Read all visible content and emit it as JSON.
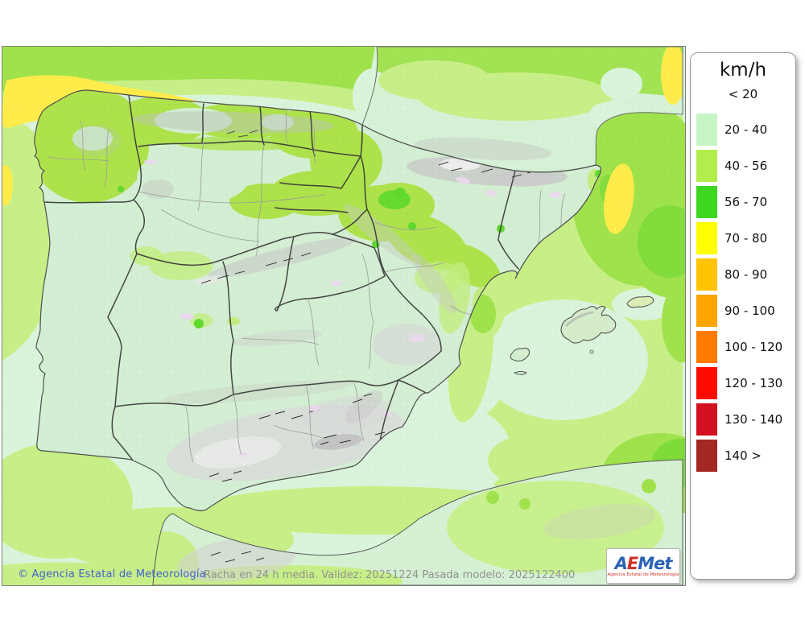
{
  "legend": {
    "unit": "km/h",
    "no_color_label": "< 20",
    "items": [
      {
        "label": "20 - 40",
        "color": "#c5f5c5"
      },
      {
        "label": "40 - 56",
        "color": "#b2ee4b"
      },
      {
        "label": "56 - 70",
        "color": "#3ed621"
      },
      {
        "label": "70 - 80",
        "color": "#ffff00"
      },
      {
        "label": "80 - 90",
        "color": "#ffc300"
      },
      {
        "label": "90 - 100",
        "color": "#ffa400"
      },
      {
        "label": "100 - 120",
        "color": "#ff7b00"
      },
      {
        "label": "120 - 130",
        "color": "#ff0a00"
      },
      {
        "label": "130 - 140",
        "color": "#d2101f"
      },
      {
        "label": "140 >",
        "color": "#a32822"
      }
    ]
  },
  "footer": {
    "copyright": "© Agencia Estatal de Meteorología",
    "caption": "Racha en 24 h media. Validez: 20251224 Pasada modelo: 2025122400"
  },
  "logo": {
    "text": "AEMet",
    "letter_colors": [
      "#2b62b5",
      "#d03125",
      "#2b62b5",
      "#2b62b5",
      "#2b62b5"
    ],
    "subtitle": "Agencia Estatal de Meteorología"
  },
  "map": {
    "palette": {
      "sea_calm": "#d9f4da",
      "band_20_40_land": "#d3eed2",
      "band_40_56_light": "#c8ef87",
      "band_40_56": "#9fe24c",
      "band_56_70": "#7edb3a",
      "band_70_80": "#ffec4a",
      "relief_gray": "#d9d9d9",
      "relief_pink": "#ead9ee"
    }
  }
}
